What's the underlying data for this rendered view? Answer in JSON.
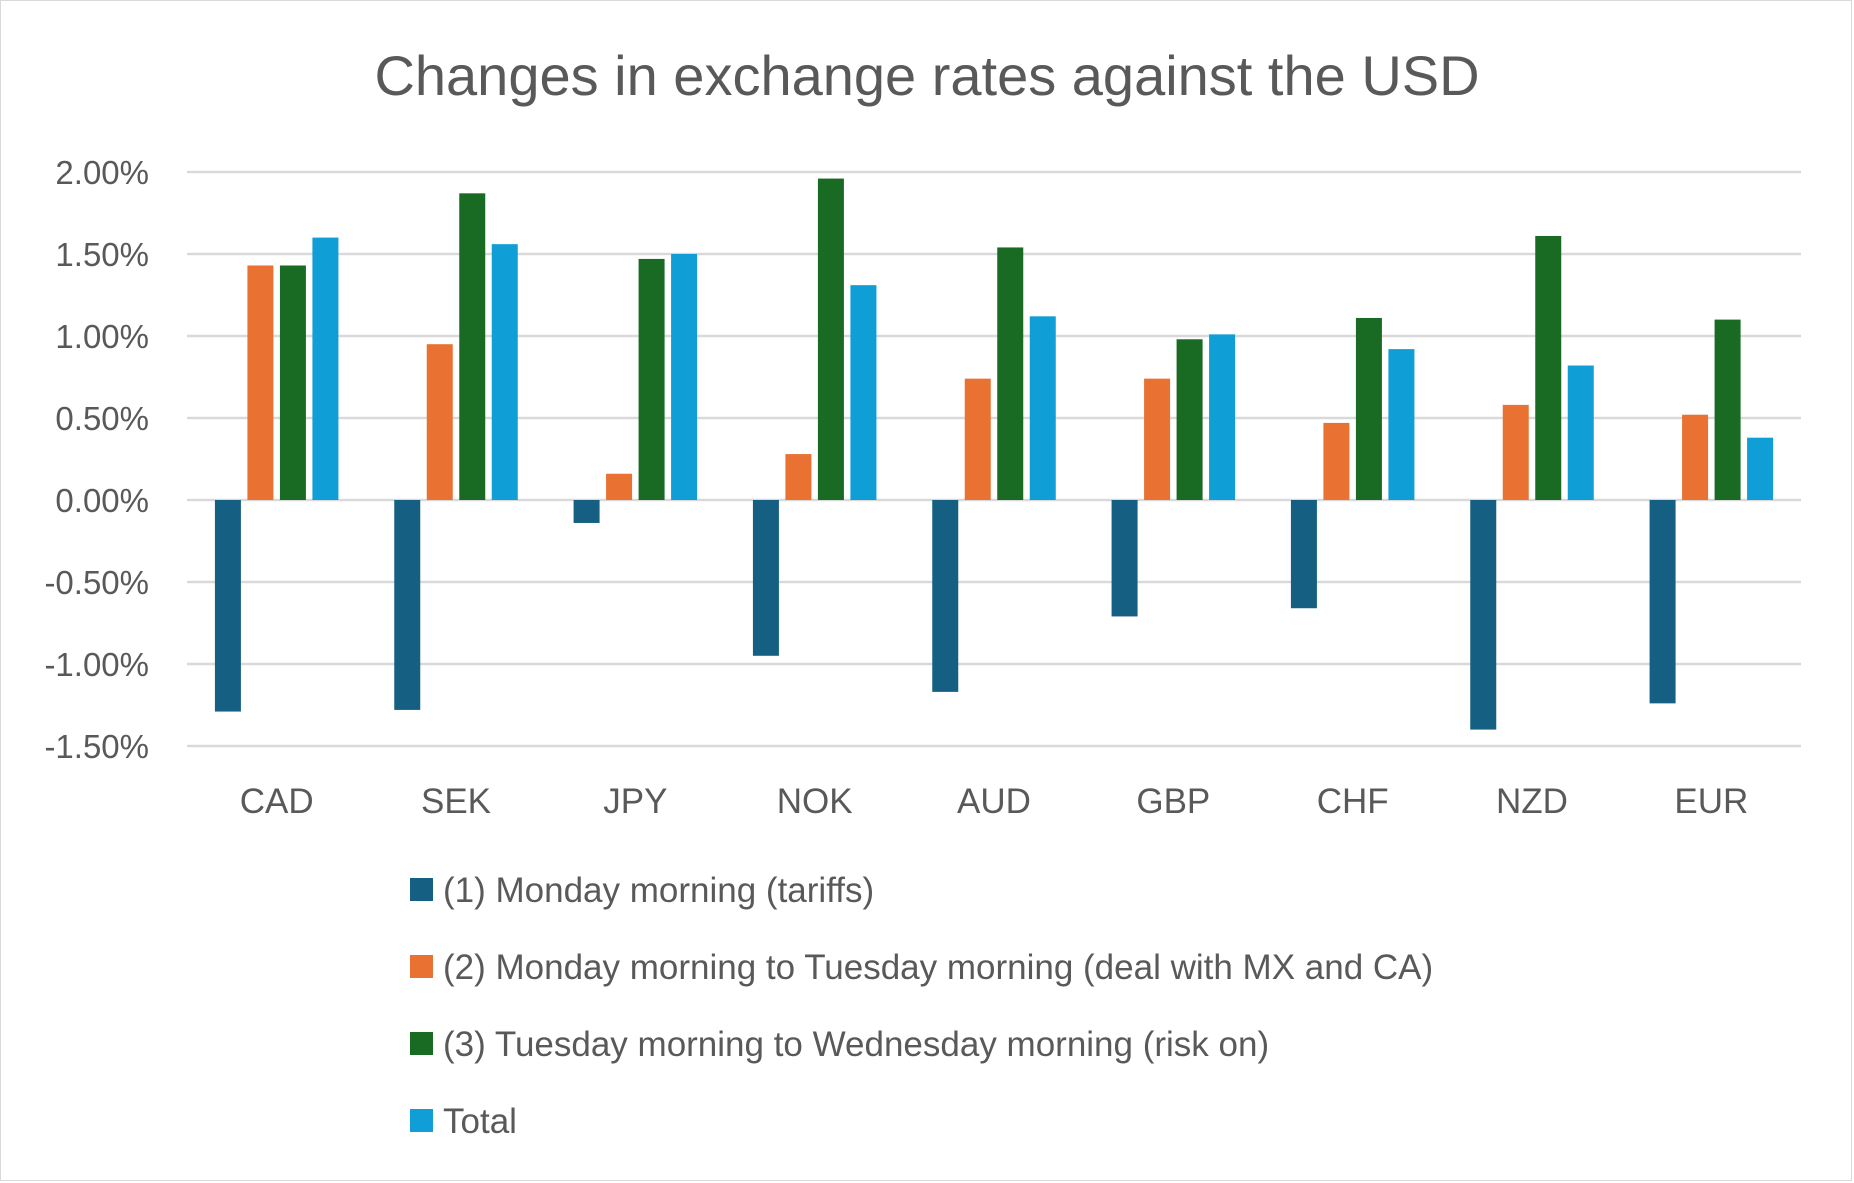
{
  "chart_data": {
    "type": "bar",
    "title": "Changes in exchange rates against the USD",
    "xlabel": "",
    "ylabel": "",
    "categories": [
      "CAD",
      "SEK",
      "JPY",
      "NOK",
      "AUD",
      "GBP",
      "CHF",
      "NZD",
      "EUR"
    ],
    "ylim": [
      -1.5,
      2.0
    ],
    "yticks": [
      2.0,
      1.5,
      1.0,
      0.5,
      0.0,
      -0.5,
      -1.0,
      -1.5
    ],
    "ytick_labels": [
      "2.00%",
      "1.50%",
      "1.00%",
      "0.50%",
      "0.00%",
      "-0.50%",
      "-1.00%",
      "-1.50%"
    ],
    "grid": true,
    "legend_position": "bottom",
    "series": [
      {
        "name": "(1) Monday morning (tariffs)",
        "color": "#156082",
        "values": [
          -1.29,
          -1.28,
          -0.14,
          -0.95,
          -1.17,
          -0.71,
          -0.66,
          -1.4,
          -1.24
        ]
      },
      {
        "name": "(2) Monday morning to Tuesday morning (deal with MX and CA)",
        "color": "#E97132",
        "values": [
          1.43,
          0.95,
          0.16,
          0.28,
          0.74,
          0.74,
          0.47,
          0.58,
          0.52
        ]
      },
      {
        "name": "(3) Tuesday morning to Wednesday morning (risk on)",
        "color": "#196B24",
        "values": [
          1.43,
          1.87,
          1.47,
          1.96,
          1.54,
          0.98,
          1.11,
          1.61,
          1.1
        ]
      },
      {
        "name": "Total",
        "color": "#0F9ED5",
        "values": [
          1.6,
          1.56,
          1.5,
          1.31,
          1.12,
          1.01,
          0.92,
          0.82,
          0.38
        ]
      }
    ]
  }
}
